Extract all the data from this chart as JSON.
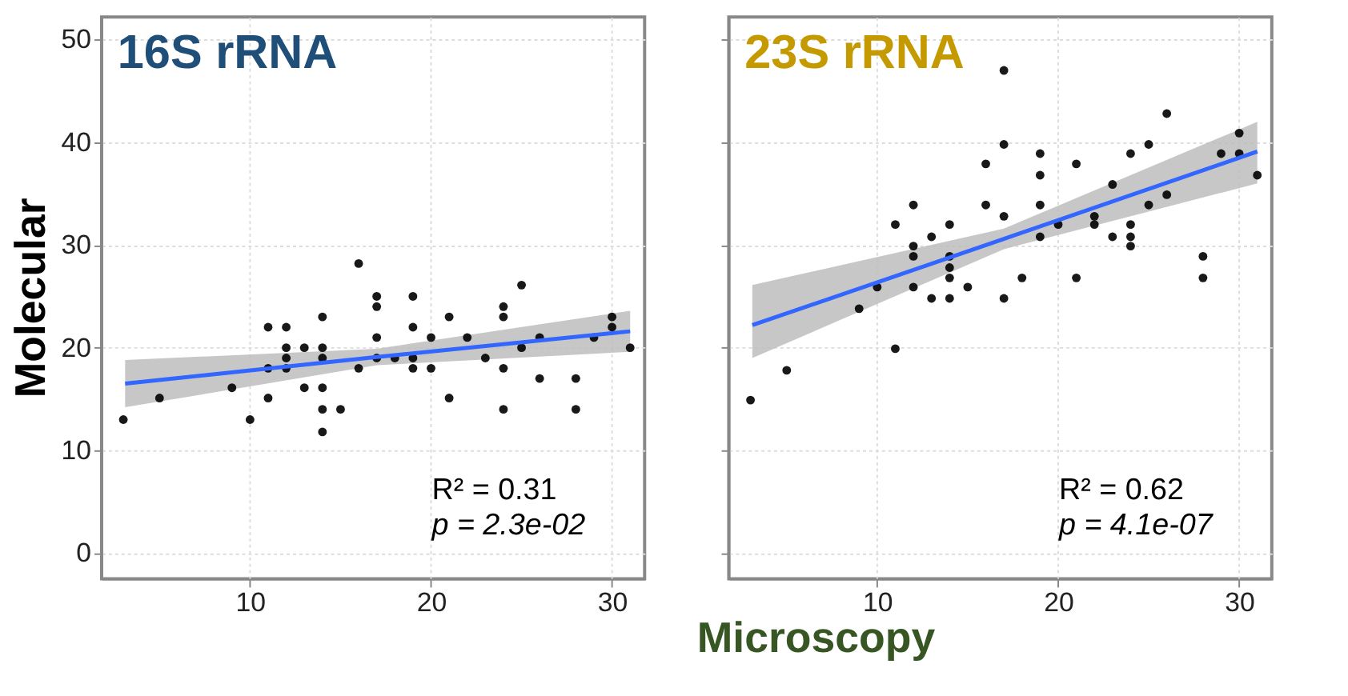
{
  "chart_data": [
    {
      "type": "scatter",
      "title": "16S rRNA",
      "ylabel": "Molecular",
      "xlabel": "Microscopy",
      "annotations": [
        "R² = 0.31",
        "p = 2.3e-02"
      ],
      "xlim": [
        1.8,
        31.8
      ],
      "ylim": [
        -2.5,
        52.2
      ],
      "xticks": [
        10,
        20,
        30
      ],
      "yticks": [
        0,
        10,
        20,
        30,
        40,
        50
      ],
      "grid": true,
      "series": [
        {
          "marker": "circle",
          "color": "#000000",
          "x": [
            3,
            5,
            9,
            10,
            11,
            11,
            11,
            12,
            12,
            12,
            12,
            13,
            13,
            14,
            14,
            14,
            14,
            14,
            14,
            15,
            16,
            16,
            17,
            17,
            17,
            17,
            18,
            19,
            19,
            19,
            19,
            20,
            20,
            21,
            21,
            22,
            23,
            24,
            24,
            24,
            24,
            25,
            25,
            26,
            26,
            28,
            28,
            29,
            30,
            30,
            31
          ],
          "values": [
            13,
            15.1,
            16.1,
            13,
            15.1,
            18,
            22,
            22,
            19,
            18,
            20,
            20,
            16.1,
            23,
            20,
            19,
            16.1,
            14,
            11.8,
            14,
            28.2,
            18,
            25,
            24,
            21,
            19,
            19,
            25,
            22,
            19,
            18,
            21,
            18,
            23,
            15.1,
            21,
            19,
            24,
            23,
            18,
            14,
            26.1,
            20,
            21,
            17,
            17,
            14,
            21,
            23,
            22,
            20
          ]
        },
        {
          "type": "line",
          "color": "#3366ff",
          "x": [
            3.1,
            17,
            31
          ],
          "values": [
            16.5,
            19.1,
            21.6
          ],
          "lower": [
            14.2,
            18.3,
            19.6
          ],
          "upper": [
            18.8,
            19.9,
            23.6
          ]
        }
      ]
    },
    {
      "type": "scatter",
      "title": "23S rRNA",
      "annotations": [
        "R² = 0.62",
        "p = 4.1e-07"
      ],
      "xlim": [
        1.8,
        31.8
      ],
      "ylim": [
        -2.5,
        52.2
      ],
      "xticks": [
        10,
        20,
        30
      ],
      "yticks": [
        0,
        10,
        20,
        30,
        40,
        50
      ],
      "tick_labels": "x",
      "grid": true,
      "series": [
        {
          "marker": "circle",
          "color": "#000000",
          "x": [
            3,
            5,
            9,
            10,
            11,
            11,
            12,
            12,
            12,
            12,
            13,
            13,
            14,
            14,
            14,
            14,
            14,
            15,
            16,
            16,
            17,
            17,
            17,
            17,
            18,
            19,
            19,
            19,
            19,
            20,
            21,
            21,
            22,
            22,
            23,
            23,
            24,
            24,
            24,
            24,
            25,
            25,
            26,
            26,
            28,
            28,
            29,
            30,
            30,
            31
          ],
          "values": [
            14.9,
            17.8,
            23.8,
            25.9,
            19.9,
            32,
            33.9,
            29.9,
            28.9,
            25.9,
            30.8,
            24.8,
            32,
            28.9,
            27.8,
            26.8,
            24.8,
            25.9,
            37.9,
            33.9,
            47,
            39.8,
            32.8,
            24.8,
            26.8,
            38.9,
            36.8,
            33.9,
            30.8,
            32,
            37.9,
            26.8,
            32.8,
            32,
            35.9,
            30.8,
            38.9,
            32,
            30.8,
            29.9,
            39.8,
            33.9,
            42.8,
            34.9,
            28.9,
            26.8,
            38.9,
            40.9,
            38.9,
            36.8
          ]
        },
        {
          "type": "line",
          "color": "#3366ff",
          "x": [
            3.1,
            17,
            31
          ],
          "values": [
            22.2,
            30.6,
            39.1
          ],
          "lower": [
            19.0,
            29.6,
            36.0
          ],
          "upper": [
            26.1,
            31.6,
            42.0
          ]
        }
      ]
    }
  ]
}
